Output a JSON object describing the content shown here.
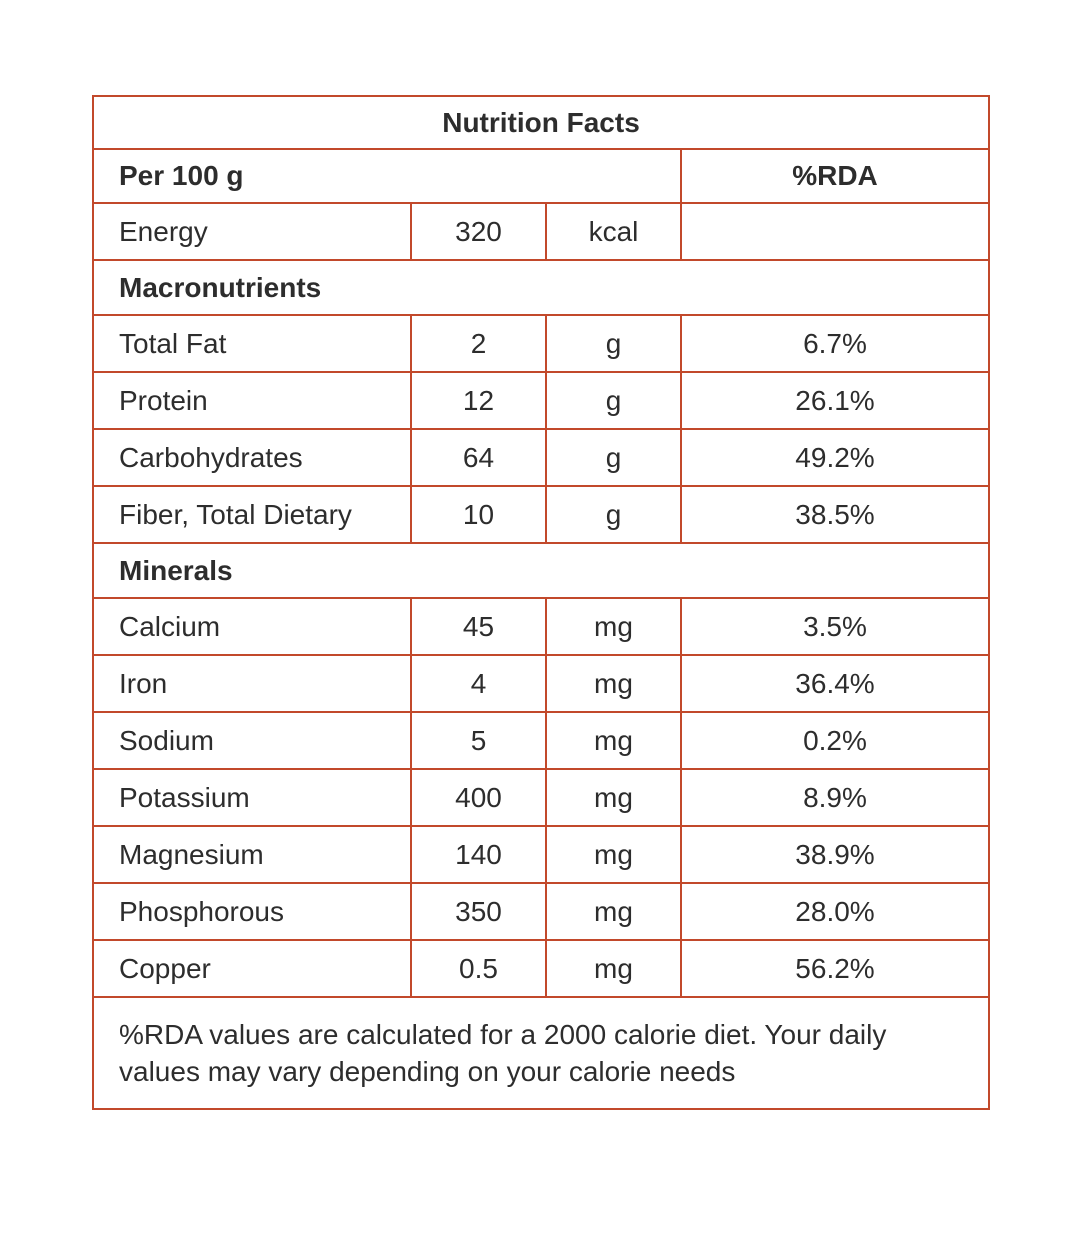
{
  "colors": {
    "border": "#c2492b",
    "text": "#2d2d2d",
    "background": "#ffffff"
  },
  "table": {
    "title": "Nutrition Facts",
    "column_header": {
      "serving": "Per 100 g",
      "rda": "%RDA"
    },
    "energy_row": {
      "label": "Energy",
      "value": "320",
      "unit": "kcal",
      "rda": ""
    },
    "sections": [
      {
        "name": "Macronutrients",
        "rows": [
          {
            "label": "Total Fat",
            "value": "2",
            "unit": "g",
            "rda": "6.7%"
          },
          {
            "label": "Protein",
            "value": "12",
            "unit": "g",
            "rda": "26.1%"
          },
          {
            "label": "Carbohydrates",
            "value": "64",
            "unit": "g",
            "rda": "49.2%"
          },
          {
            "label": "Fiber, Total Dietary",
            "value": "10",
            "unit": "g",
            "rda": "38.5%"
          }
        ]
      },
      {
        "name": "Minerals",
        "rows": [
          {
            "label": "Calcium",
            "value": "45",
            "unit": "mg",
            "rda": "3.5%"
          },
          {
            "label": "Iron",
            "value": "4",
            "unit": "mg",
            "rda": "36.4%"
          },
          {
            "label": "Sodium",
            "value": "5",
            "unit": "mg",
            "rda": "0.2%"
          },
          {
            "label": "Potassium",
            "value": "400",
            "unit": "mg",
            "rda": "8.9%"
          },
          {
            "label": "Magnesium",
            "value": "140",
            "unit": "mg",
            "rda": "38.9%"
          },
          {
            "label": "Phosphorous",
            "value": "350",
            "unit": "mg",
            "rda": "28.0%"
          },
          {
            "label": "Copper",
            "value": "0.5",
            "unit": "mg",
            "rda": "56.2%"
          }
        ]
      }
    ],
    "footnote": "%RDA values are calculated for a 2000 calorie diet. Your daily values may vary depending on your calorie needs"
  }
}
